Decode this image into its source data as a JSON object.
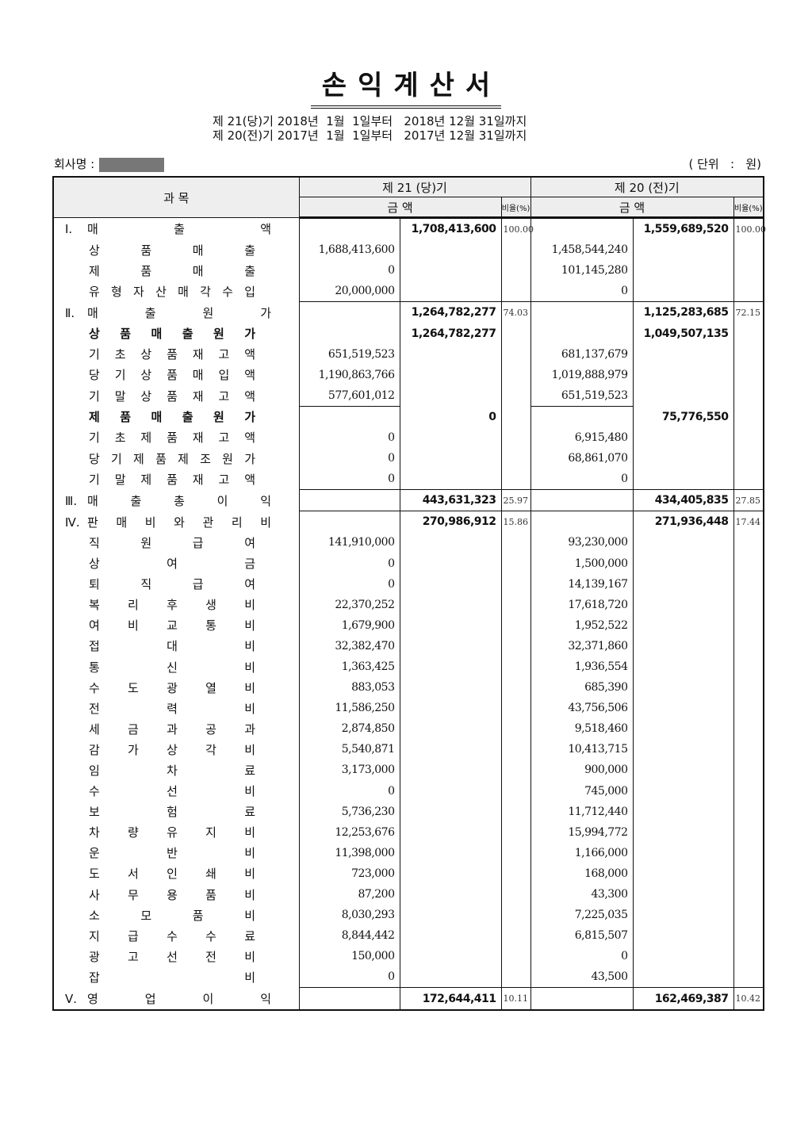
{
  "title": "손익계산서",
  "period_lines": [
    "제 21(당)기 2018년  1월  1일부터   2018년 12월 31일까지",
    "제 20(전)기 2017년  1월  1일부터   2017년 12월 31일까지"
  ],
  "company_label": "회사명 :",
  "unit": "( 단위   :   원)",
  "header": {
    "subject": "과      목",
    "current": "제 21 (당)기",
    "prior": "제 20 (전)기",
    "amount": "금        액",
    "ratio": "비율(%)"
  },
  "rows": [
    {
      "type": "sec",
      "num": "Ⅰ.",
      "label": "매 출 액",
      "cb": "1,708,413,600",
      "cr": "100.00",
      "pb": "1,559,689,520",
      "pr": "100.00"
    },
    {
      "type": "item",
      "label": "상 품 매 출",
      "ca": "1,688,413,600",
      "pa": "1,458,544,240"
    },
    {
      "type": "item",
      "label": "제 품 매 출",
      "ca": "0",
      "pa": "101,145,280"
    },
    {
      "type": "item",
      "label": "유 형 자 산 매 각 수 입",
      "ca": "20,000,000",
      "pa": "0"
    },
    {
      "type": "sec",
      "num": "Ⅱ.",
      "label": "매 출 원 가",
      "cb": "1,264,782,277",
      "cr": "74.03",
      "pb": "1,125,283,685",
      "pr": "72.15"
    },
    {
      "type": "subh",
      "label": "상 품 매 출 원 가",
      "cb": "1,264,782,277",
      "pb": "1,049,507,135"
    },
    {
      "type": "item",
      "label": "기 초 상 품 재 고 액",
      "ca": "651,519,523",
      "pa": "681,137,679"
    },
    {
      "type": "item",
      "label": "당 기 상 품 매 입 액",
      "ca": "1,190,863,766",
      "pa": "1,019,888,979"
    },
    {
      "type": "item",
      "label": "기 말 상 품 재 고 액",
      "ca": "577,601,012",
      "pa": "651,519,523"
    },
    {
      "type": "subh2",
      "label": "제 품 매 출 원 가",
      "cb": "0",
      "pb": "75,776,550"
    },
    {
      "type": "item",
      "label": "기 초 제 품 재 고 액",
      "ca": "0",
      "pa": "6,915,480"
    },
    {
      "type": "item",
      "label": "당 기 제 품 제 조 원 가",
      "ca": "0",
      "pa": "68,861,070"
    },
    {
      "type": "item",
      "label": "기 말 제 품 재 고 액",
      "ca": "0",
      "pa": "0"
    },
    {
      "type": "sec",
      "num": "Ⅲ.",
      "label": "매 출 총 이 익",
      "cb": "443,631,323",
      "cr": "25.97",
      "pb": "434,405,835",
      "pr": "27.85"
    },
    {
      "type": "sec2",
      "num": "Ⅳ.",
      "label": "판 매 비 와 관 리 비",
      "cb": "270,986,912",
      "cr": "15.86",
      "pb": "271,936,448",
      "pr": "17.44"
    },
    {
      "type": "item",
      "label": "직 원 급 여",
      "ca": "141,910,000",
      "pa": "93,230,000"
    },
    {
      "type": "item",
      "label": "상 여 금",
      "ca": "0",
      "pa": "1,500,000"
    },
    {
      "type": "item",
      "label": "퇴 직 급 여",
      "ca": "0",
      "pa": "14,139,167"
    },
    {
      "type": "item",
      "label": "복 리 후 생 비",
      "ca": "22,370,252",
      "pa": "17,618,720"
    },
    {
      "type": "item",
      "label": "여 비 교 통 비",
      "ca": "1,679,900",
      "pa": "1,952,522"
    },
    {
      "type": "item",
      "label": "접 대 비",
      "ca": "32,382,470",
      "pa": "32,371,860"
    },
    {
      "type": "item",
      "label": "통 신 비",
      "ca": "1,363,425",
      "pa": "1,936,554"
    },
    {
      "type": "item",
      "label": "수 도 광 열 비",
      "ca": "883,053",
      "pa": "685,390"
    },
    {
      "type": "item",
      "label": "전 력 비",
      "ca": "11,586,250",
      "pa": "43,756,506"
    },
    {
      "type": "item",
      "label": "세 금 과 공 과",
      "ca": "2,874,850",
      "pa": "9,518,460"
    },
    {
      "type": "item",
      "label": "감 가 상 각 비",
      "ca": "5,540,871",
      "pa": "10,413,715"
    },
    {
      "type": "item",
      "label": "임 차 료",
      "ca": "3,173,000",
      "pa": "900,000"
    },
    {
      "type": "item",
      "label": "수 선 비",
      "ca": "0",
      "pa": "745,000"
    },
    {
      "type": "item",
      "label": "보 험 료",
      "ca": "5,736,230",
      "pa": "11,712,440"
    },
    {
      "type": "item",
      "label": "차 량 유 지 비",
      "ca": "12,253,676",
      "pa": "15,994,772"
    },
    {
      "type": "item",
      "label": "운 반 비",
      "ca": "11,398,000",
      "pa": "1,166,000"
    },
    {
      "type": "item",
      "label": "도 서 인 쇄 비",
      "ca": "723,000",
      "pa": "168,000"
    },
    {
      "type": "item",
      "label": "사 무 용 품 비",
      "ca": "87,200",
      "pa": "43,300"
    },
    {
      "type": "item",
      "label": "소 모 품 비",
      "ca": "8,030,293",
      "pa": "7,225,035"
    },
    {
      "type": "item",
      "label": "지 급 수 수 료",
      "ca": "8,844,442",
      "pa": "6,815,507"
    },
    {
      "type": "item",
      "label": "광 고 선 전 비",
      "ca": "150,000",
      "pa": "0"
    },
    {
      "type": "item",
      "label": "잡 비",
      "ca": "0",
      "pa": "43,500"
    },
    {
      "type": "sec",
      "num": "Ⅴ.",
      "label": "영 업 이 익",
      "cb": "172,644,411",
      "cr": "10.11",
      "pb": "162,469,387",
      "pr": "10.42"
    }
  ]
}
